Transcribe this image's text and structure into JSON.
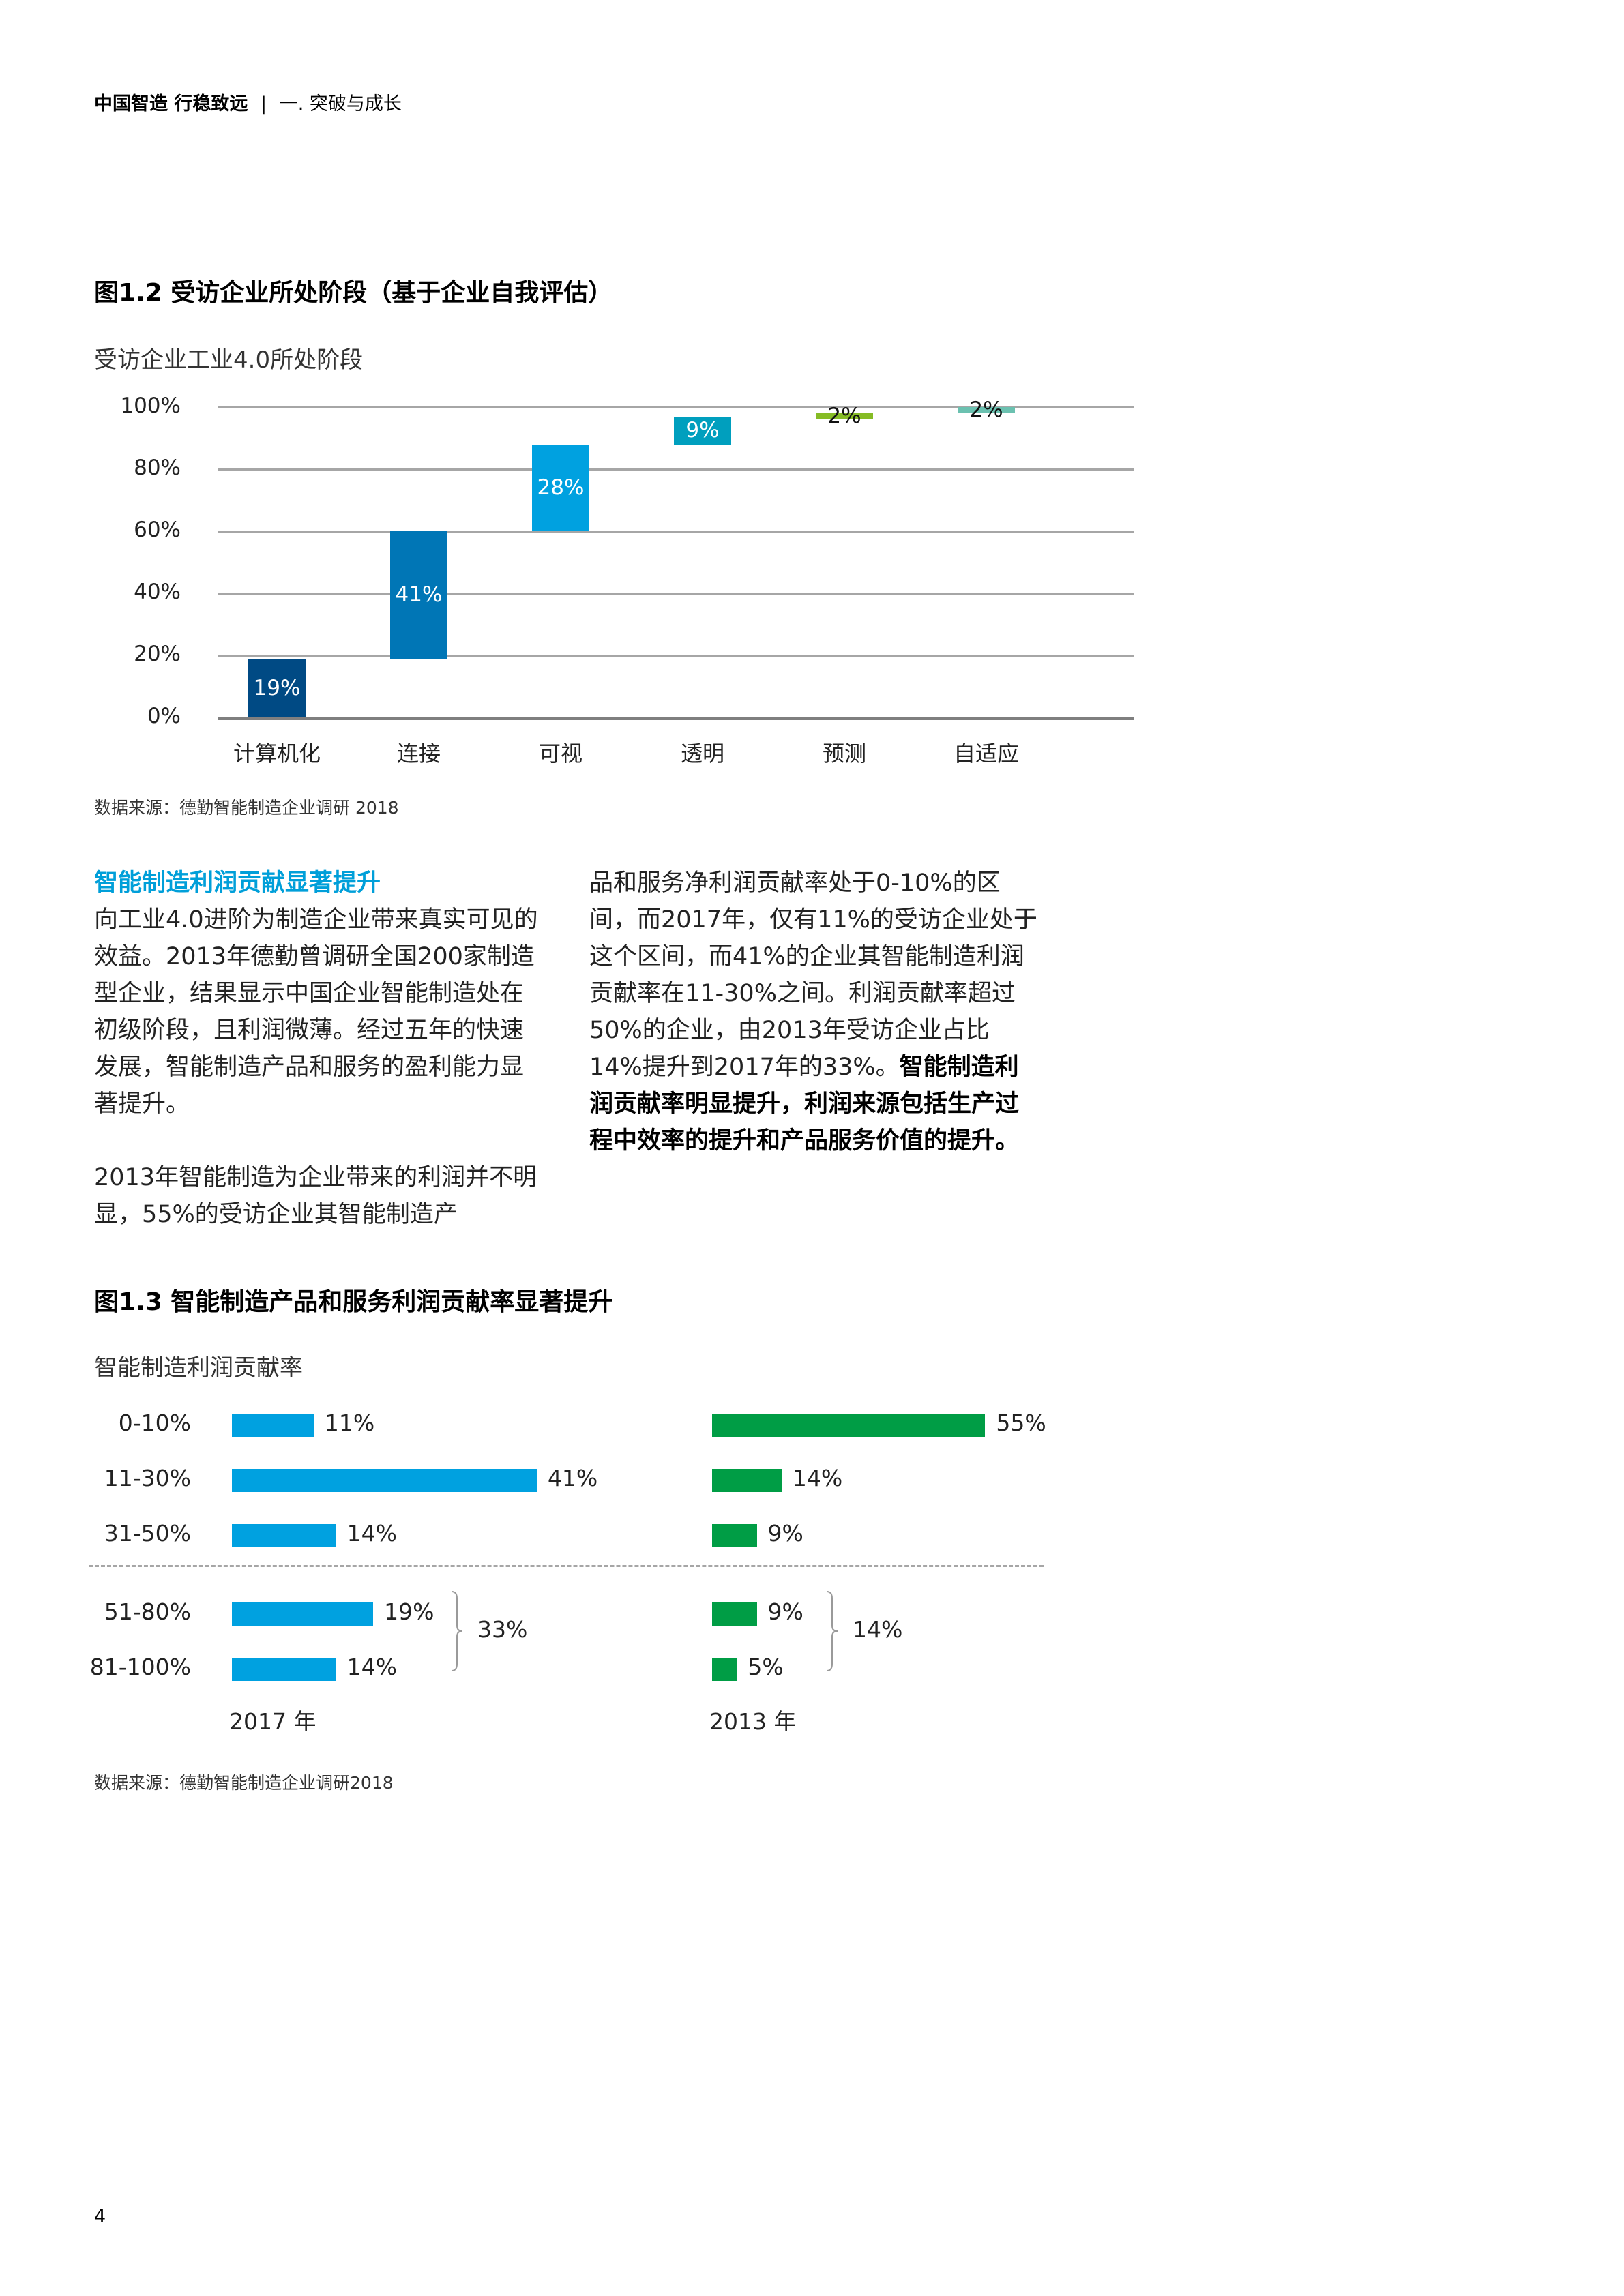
{
  "header": {
    "title_bold": "中国智造 行稳致远",
    "separator": "|",
    "section": "一. 突破与成长"
  },
  "figure_1_2": {
    "title": "图1.2 受访企业所处阶段（基于企业自我评估）",
    "subtitle": "受访企业工业4.0所处阶段",
    "source": "数据来源：德勤智能制造企业调研 2018"
  },
  "section": {
    "heading": "智能制造利润贡献显著提升",
    "left_p1": "向工业4.0进阶为制造企业带来真实可见的效益。2013年德勤曾调研全国200家制造型企业，结果显示中国企业智能制造处在初级阶段，且利润微薄。经过五年的快速发展，智能制造产品和服务的盈利能力显著提升。",
    "left_p2": "2013年智能制造为企业带来的利润并不明显，55%的受访企业其智能制造产",
    "right_p1": "品和服务净利润贡献率处于0-10%的区间，而2017年，仅有11%的受访企业处于这个区间，而41%的企业其智能制造利润贡献率在11-30%之间。利润贡献率超过50%的企业，由2013年受访企业占比14%提升到2017年的33%。",
    "right_bold": "智能制造利润贡献率明显提升，利润来源包括生产过程中效率的提升和产品服务价值的提升。"
  },
  "figure_1_3": {
    "title": "图1.3 智能制造产品和服务利润贡献率显著提升",
    "subtitle": "智能制造利润贡献率",
    "source": "数据来源：德勤智能制造企业调研2018",
    "year_2017": "2017 年",
    "year_2013": "2013 年",
    "group_2017": "33%",
    "group_2013": "14%"
  },
  "page_number": "4",
  "colors": {
    "bar_computerization": "#004a84",
    "bar_connectivity": "#0076b6",
    "bar_visibility": "#00a1e0",
    "bar_transparency": "#009fbe",
    "bar_predictive": "#86bc25",
    "bar_adaptability": "#6bc1b0",
    "bar_2017": "#00a1e0",
    "bar_2013": "#009d45",
    "heading_accent": "#009fd9"
  },
  "chart_data": [
    {
      "type": "bar",
      "subtype": "waterfall",
      "title": "图1.2 受访企业所处阶段（基于企业自我评估）",
      "subtitle": "受访企业工业4.0所处阶段",
      "categories": [
        "计算机化",
        "连接",
        "可视",
        "透明",
        "预测",
        "自适应"
      ],
      "values": [
        19,
        41,
        28,
        9,
        2,
        2
      ],
      "labels": [
        "19%",
        "41%",
        "28%",
        "9%",
        "2%",
        "2%"
      ],
      "bases": [
        0,
        19,
        60,
        88,
        96,
        98
      ],
      "yticks": [
        "0%",
        "20%",
        "40%",
        "60%",
        "80%",
        "100%"
      ],
      "ylim": [
        0,
        100
      ],
      "xlabel": "",
      "ylabel": "",
      "grid": true,
      "source": "数据来源：德勤智能制造企业调研 2018"
    },
    {
      "type": "bar",
      "orientation": "horizontal",
      "title": "图1.3 智能制造产品和服务利润贡献率显著提升",
      "subtitle": "智能制造利润贡献率",
      "categories": [
        "0-10%",
        "11-30%",
        "31-50%",
        "51-80%",
        "81-100%"
      ],
      "series": [
        {
          "name": "2017 年",
          "values": [
            11,
            41,
            14,
            19,
            14
          ],
          "labels": [
            "11%",
            "41%",
            "14%",
            "19%",
            "14%"
          ],
          "group_total_51_100": "33%"
        },
        {
          "name": "2013 年",
          "values": [
            55,
            14,
            9,
            9,
            5
          ],
          "labels": [
            "55%",
            "14%",
            "9%",
            "9%",
            "5%"
          ],
          "group_total_51_100": "14%"
        }
      ],
      "annotations": [
        "dashed separator between 31-50% and 51-80%",
        "brace grouping 51-80% and 81-100%"
      ],
      "source": "数据来源：德勤智能制造企业调研2018"
    }
  ]
}
